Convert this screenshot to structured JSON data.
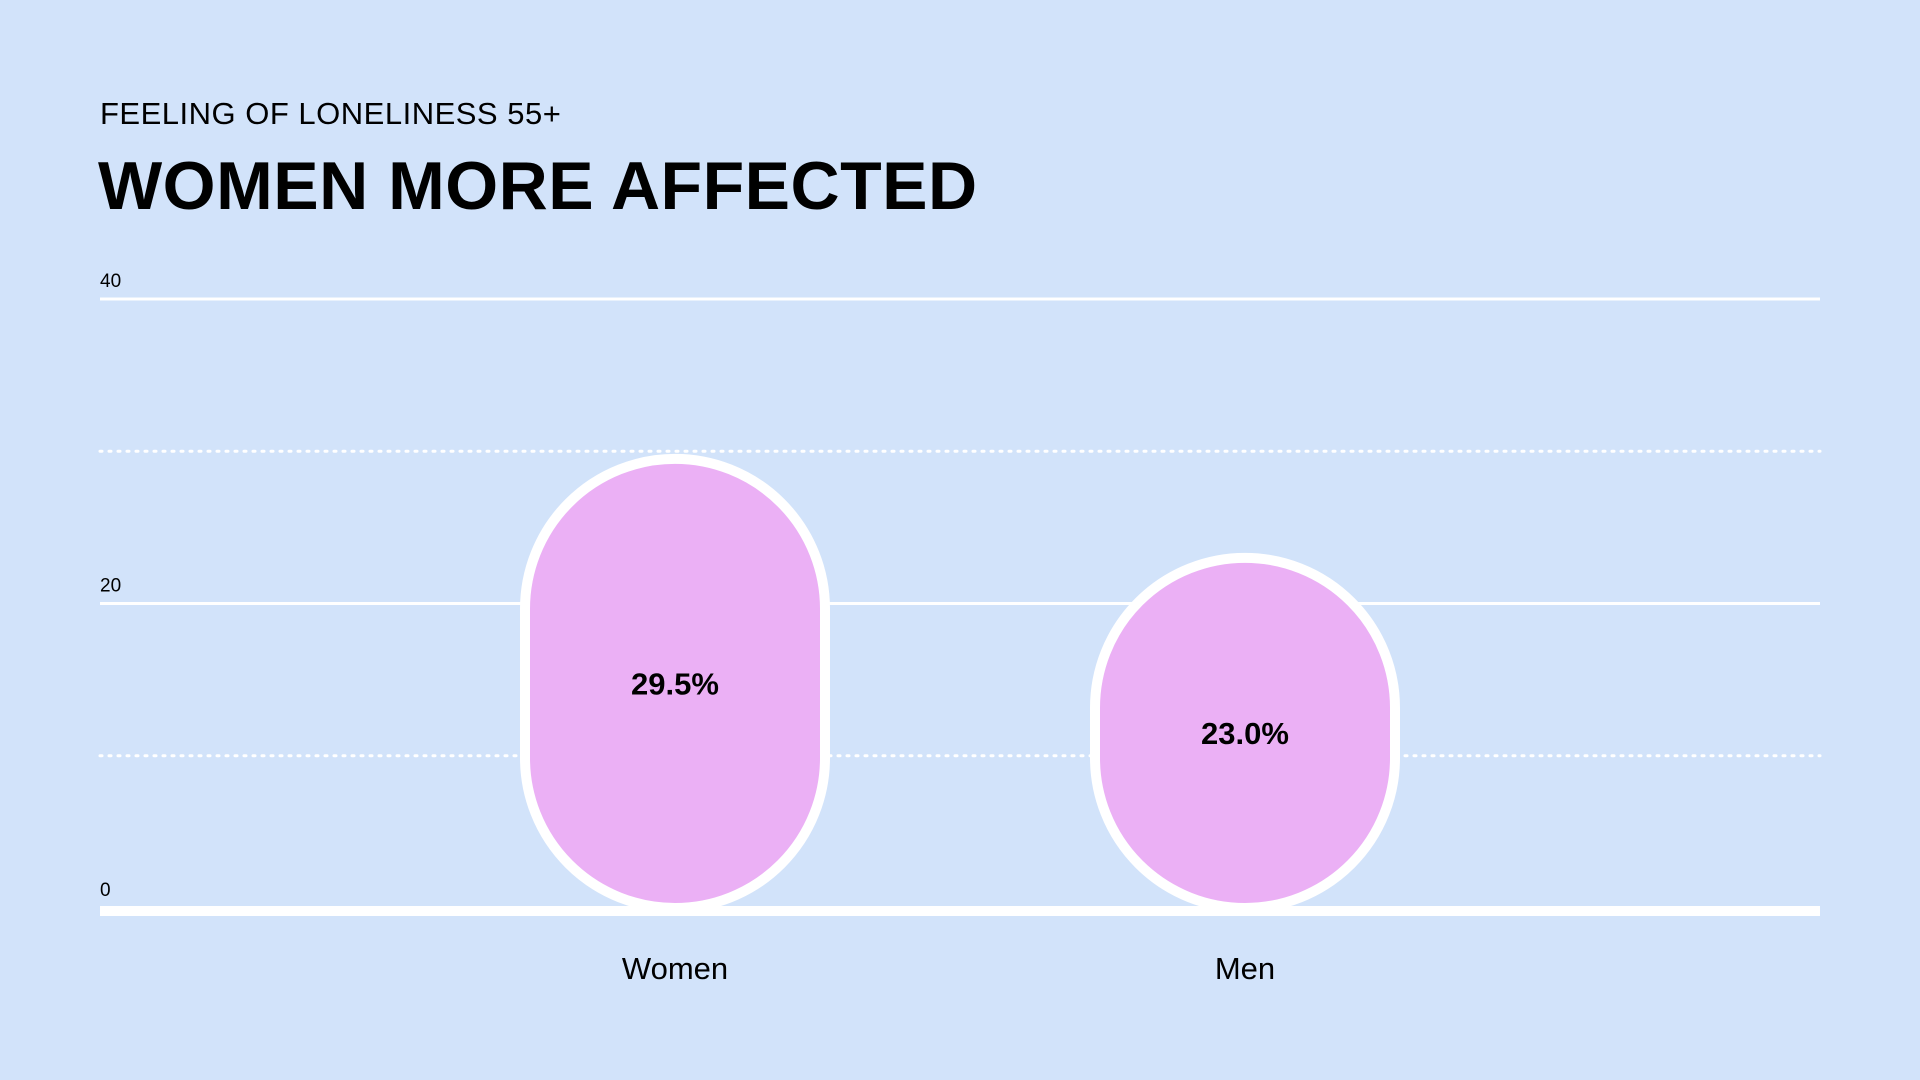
{
  "chart_data": {
    "type": "bar",
    "subtitle": "FEELING OF LONELINESS 55+",
    "title": "WOMEN MORE AFFECTED",
    "categories": [
      "Women",
      "Men"
    ],
    "values": [
      29.5,
      23.0
    ],
    "value_labels": [
      "29.5%",
      "23.0%"
    ],
    "ylim": [
      0,
      40
    ],
    "y_ticks": [
      0,
      20,
      40
    ],
    "y_tick_labels": [
      "0",
      "20",
      "40"
    ],
    "minor_gridlines": [
      10,
      30
    ],
    "grid": true,
    "legend": "none"
  },
  "colors": {
    "background": "#d2e3fa",
    "bar_fill": "#ebb0f5",
    "bar_stroke": "#ffffff",
    "grid": "#ffffff",
    "text": "#000000"
  }
}
